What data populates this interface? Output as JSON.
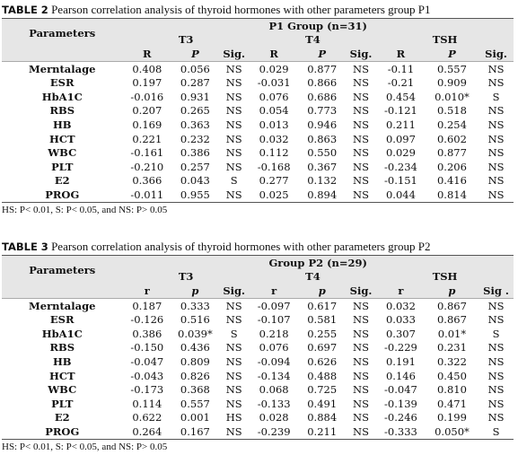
{
  "tables": [
    {
      "label": "TABLE 2",
      "caption": "Pearson correlation analysis of thyroid hormones with other parameters group P1",
      "header": {
        "param": "Parameters",
        "group": "P1 Group (n=31)",
        "hormones": [
          "T3",
          "T4",
          "TSH"
        ],
        "sub": [
          "R",
          "P",
          "Sig.",
          "R",
          "P",
          "Sig.",
          "R",
          "P",
          "Sig."
        ]
      },
      "rows": [
        [
          "Merntalage",
          "0.408",
          "0.056",
          "NS",
          "0.029",
          "0.877",
          "NS",
          "-0.11",
          "0.557",
          "NS"
        ],
        [
          "ESR",
          "0.197",
          "0.287",
          "NS",
          "-0.031",
          "0.866",
          "NS",
          "-0.21",
          "0.909",
          "NS"
        ],
        [
          "HbA1C",
          "-0.016",
          "0.931",
          "NS",
          "0.076",
          "0.686",
          "NS",
          "0.454",
          "0.010*",
          "S"
        ],
        [
          "RBS",
          "0.207",
          "0.265",
          "NS",
          "0.054",
          "0.773",
          "NS",
          "-0.121",
          "0.518",
          "NS"
        ],
        [
          "HB",
          "0.169",
          "0.363",
          "NS",
          "0.013",
          "0.946",
          "NS",
          "0.211",
          "0.254",
          "NS"
        ],
        [
          "HCT",
          "0.221",
          "0.232",
          "NS",
          "0.032",
          "0.863",
          "NS",
          "0.097",
          "0.602",
          "NS"
        ],
        [
          "WBC",
          "-0.161",
          "0.386",
          "NS",
          "0.112",
          "0.550",
          "NS",
          "0.029",
          "0.877",
          "NS"
        ],
        [
          "PLT",
          "-0.210",
          "0.257",
          "NS",
          "-0.168",
          "0.367",
          "NS",
          "-0.234",
          "0.206",
          "NS"
        ],
        [
          "E2",
          "0.366",
          "0.043",
          "S",
          "0.277",
          "0.132",
          "NS",
          "-0.151",
          "0.416",
          "NS"
        ],
        [
          "PROG",
          "-0.011",
          "0.955",
          "NS",
          "0.025",
          "0.894",
          "NS",
          "0.044",
          "0.814",
          "NS"
        ]
      ],
      "footnote": "HS: P< 0.01, S: P< 0.05, and NS: P> 0.05"
    },
    {
      "label": "TABLE 3",
      "caption": "Pearson correlation analysis of thyroid hormones with other parameters group P2",
      "header": {
        "param": "Parameters",
        "group": "Group P2 (n=29)",
        "hormones": [
          "T3",
          "T4",
          "TSH"
        ],
        "sub": [
          "r",
          "p",
          "Sig.",
          "r",
          "p",
          "Sig.",
          "r",
          "p",
          "Sig ."
        ]
      },
      "rows": [
        [
          "Merntalage",
          "0.187",
          "0.333",
          "NS",
          "-0.097",
          "0.617",
          "NS",
          "0.032",
          "0.867",
          "NS"
        ],
        [
          "ESR",
          "-0.126",
          "0.516",
          "NS",
          "-0.107",
          "0.581",
          "NS",
          "0.033",
          "0.867",
          "NS"
        ],
        [
          "HbA1C",
          "0.386",
          "0.039*",
          "S",
          "0.218",
          "0.255",
          "NS",
          "0.307",
          "0.01*",
          "S"
        ],
        [
          "RBS",
          "-0.150",
          "0.436",
          "NS",
          "0.076",
          "0.697",
          "NS",
          "-0.229",
          "0.231",
          "NS"
        ],
        [
          "HB",
          "-0.047",
          "0.809",
          "NS",
          "-0.094",
          "0.626",
          "NS",
          "0.191",
          "0.322",
          "NS"
        ],
        [
          "HCT",
          "-0.043",
          "0.826",
          "NS",
          "-0.134",
          "0.488",
          "NS",
          "0.146",
          "0.450",
          "NS"
        ],
        [
          "WBC",
          "-0.173",
          "0.368",
          "NS",
          "0.068",
          "0.725",
          "NS",
          "-0.047",
          "0.810",
          "NS"
        ],
        [
          "PLT",
          "0.114",
          "0.557",
          "NS",
          "-0.133",
          "0.491",
          "NS",
          "-0.139",
          "0.471",
          "NS"
        ],
        [
          "E2",
          "0.622",
          "0.001",
          "HS",
          "0.028",
          "0.884",
          "NS",
          "-0.246",
          "0.199",
          "NS"
        ],
        [
          "PROG",
          "0.264",
          "0.167",
          "NS",
          "-0.239",
          "0.211",
          "NS",
          "-0.333",
          "0.050*",
          "S"
        ]
      ],
      "footnote": "HS: P< 0.01, S: P< 0.05, and NS: P> 0.05"
    }
  ]
}
